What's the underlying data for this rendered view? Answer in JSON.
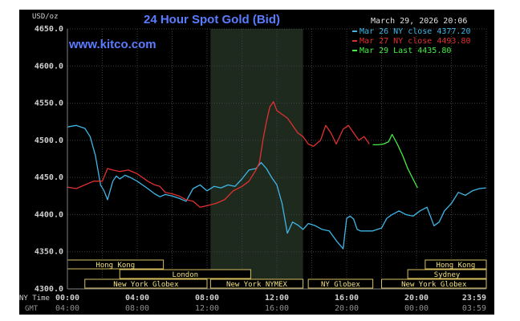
{
  "chart_data": {
    "type": "line",
    "title": "24 Hour Spot Gold (Bid)",
    "watermark": "www.kitco.com",
    "timestamp": "March 29, 2026 20:06",
    "ylabel": "USD/oz",
    "ylim": [
      4300,
      4650
    ],
    "yticks": [
      "4650.0",
      "4600.0",
      "4550.0",
      "4500.0",
      "4450.0",
      "4400.0",
      "4350.0",
      "4300.0"
    ],
    "ytick_values": [
      4650,
      4600,
      4550,
      4500,
      4450,
      4400,
      4350,
      4300
    ],
    "xlim": [
      0,
      24
    ],
    "x_row_labels": {
      "ny": "NY Time",
      "gmt": "GMT"
    },
    "xticks_ny": [
      "00:00",
      "04:00",
      "08:00",
      "12:00",
      "16:00",
      "20:00",
      "23:59"
    ],
    "xticks_gmt": [
      "04:00",
      "08:00",
      "12:00",
      "16:00",
      "20:00",
      "00:00",
      "03:59"
    ],
    "xtick_hours": [
      0,
      4,
      8,
      12,
      16,
      20,
      23.98
    ],
    "colors": {
      "mar26": "#3fb6e6",
      "mar27": "#e03030",
      "mar29": "#44ee44",
      "grid": "#404040",
      "shade": "#1e2a1e",
      "session_fill": "#000000",
      "session_border": "#d8c060",
      "session_text": "#f0e080",
      "axis_text": "#d0d0d0",
      "title": "#5a7cff",
      "timestamp": "#e0e0e0"
    },
    "shaded_region": [
      8.2,
      13.5
    ],
    "sessions": [
      {
        "name": "Hong Kong",
        "start": 0,
        "end": 5.5,
        "row": 1
      },
      {
        "name": "London",
        "start": 3,
        "end": 10.5,
        "row": 2
      },
      {
        "name": "New York Globex",
        "start": 1,
        "end": 8,
        "row": 3
      },
      {
        "name": "New York NYMEX",
        "start": 8.2,
        "end": 13.5,
        "row": 3
      },
      {
        "name": "NY Globex",
        "start": 13.8,
        "end": 17.5,
        "row": 3
      },
      {
        "name": "Hong Kong",
        "start": 20.5,
        "end": 24,
        "row": 1
      },
      {
        "name": "Sydney",
        "start": 19.5,
        "end": 24,
        "row": 2
      },
      {
        "name": "New York Globex",
        "start": 18,
        "end": 24,
        "row": 3
      }
    ],
    "series": [
      {
        "name": "Mar 26 NY close 4377.20",
        "color": "#3fb6e6",
        "x": [
          0,
          0.5,
          1.0,
          1.3,
          1.6,
          1.9,
          2.1,
          2.3,
          2.6,
          2.8,
          3.0,
          3.3,
          3.6,
          4.0,
          4.3,
          4.6,
          5.0,
          5.3,
          5.6,
          6.0,
          6.4,
          6.8,
          7.2,
          7.6,
          8.0,
          8.4,
          8.8,
          9.2,
          9.6,
          10.0,
          10.4,
          10.8,
          11.1,
          11.4,
          11.7,
          12.0,
          12.3,
          12.6,
          12.9,
          13.2,
          13.5,
          13.8,
          14.2,
          14.6,
          15.0,
          15.4,
          15.8,
          16.0,
          16.2,
          16.4,
          16.6,
          16.8,
          17.0,
          17.5,
          18.0,
          18.3,
          18.6,
          19.0,
          19.4,
          19.8,
          20.2,
          20.6,
          21.0,
          21.3,
          21.6,
          22.0,
          22.4,
          22.8,
          23.2,
          23.6,
          23.98
        ],
        "values": [
          4518,
          4520,
          4516,
          4505,
          4480,
          4440,
          4432,
          4420,
          4445,
          4452,
          4448,
          4453,
          4450,
          4445,
          4440,
          4435,
          4428,
          4424,
          4427,
          4425,
          4422,
          4418,
          4435,
          4440,
          4432,
          4438,
          4436,
          4440,
          4438,
          4448,
          4460,
          4462,
          4470,
          4462,
          4450,
          4440,
          4415,
          4375,
          4390,
          4386,
          4380,
          4388,
          4385,
          4380,
          4378,
          4365,
          4354,
          4395,
          4398,
          4394,
          4380,
          4378,
          4378,
          4378,
          4382,
          4395,
          4400,
          4405,
          4400,
          4398,
          4405,
          4410,
          4385,
          4390,
          4405,
          4415,
          4430,
          4426,
          4432,
          4435,
          4436
        ]
      },
      {
        "name": "Mar 27 NY close 4493.80",
        "color": "#e03030",
        "x": [
          0,
          0.5,
          1.0,
          1.5,
          2.0,
          2.3,
          2.6,
          3.0,
          3.5,
          4.0,
          4.3,
          4.6,
          5.0,
          5.3,
          5.6,
          6.0,
          6.4,
          6.8,
          7.2,
          7.6,
          8.0,
          8.5,
          9.0,
          9.5,
          10.0,
          10.4,
          10.8,
          11.0,
          11.2,
          11.4,
          11.6,
          11.8,
          12.0,
          12.3,
          12.6,
          12.9,
          13.2,
          13.5,
          13.8,
          14.1,
          14.5,
          14.8,
          15.1,
          15.4,
          15.8,
          16.1,
          16.4,
          16.7,
          17.0,
          17.3
        ],
        "values": [
          4437,
          4435,
          4440,
          4445,
          4445,
          4462,
          4460,
          4458,
          4460,
          4455,
          4450,
          4445,
          4440,
          4438,
          4430,
          4428,
          4425,
          4420,
          4418,
          4410,
          4412,
          4415,
          4420,
          4432,
          4438,
          4445,
          4460,
          4470,
          4500,
          4525,
          4545,
          4552,
          4540,
          4535,
          4530,
          4520,
          4510,
          4505,
          4495,
          4492,
          4500,
          4520,
          4510,
          4495,
          4515,
          4520,
          4510,
          4500,
          4505,
          4495
        ]
      },
      {
        "name": "Mar 29 Last 4435.80",
        "color": "#44ee44",
        "x": [
          17.5,
          17.8,
          18.1,
          18.4,
          18.6,
          18.9,
          19.2,
          19.5,
          19.8,
          20.06
        ],
        "values": [
          4494,
          4494,
          4495,
          4498,
          4508,
          4495,
          4480,
          4462,
          4448,
          4436
        ]
      }
    ]
  }
}
